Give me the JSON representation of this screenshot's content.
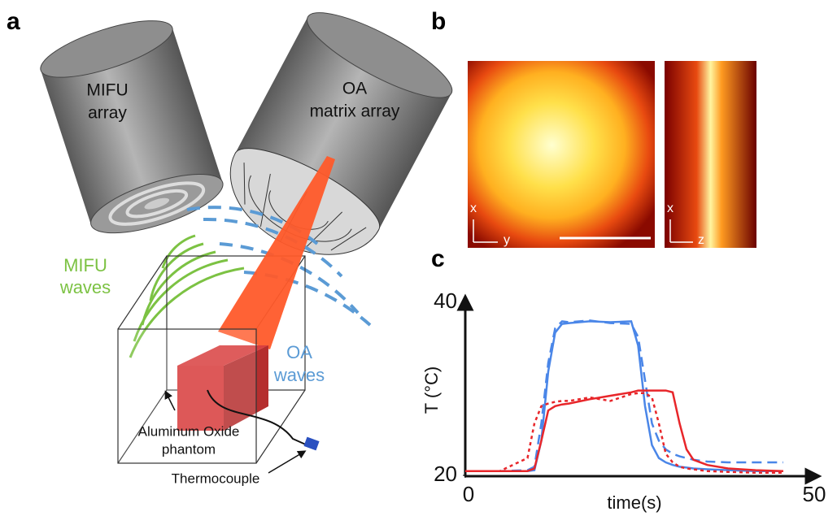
{
  "panels": {
    "a": "a",
    "b": "b",
    "c": "c"
  },
  "diagram": {
    "mifu_array": [
      "MIFU",
      "array"
    ],
    "oa_array": [
      "OA",
      "matrix array"
    ],
    "mifu_waves": [
      "MIFU",
      "waves"
    ],
    "oa_waves": [
      "OA",
      "waves"
    ],
    "phantom": [
      "Aluminum Oxide",
      "phantom"
    ],
    "thermocouple": "Thermocouple"
  },
  "images": {
    "left_axes": [
      "x",
      "y"
    ],
    "right_axes": [
      "x",
      "z"
    ]
  },
  "chart_data": {
    "type": "line",
    "xlabel": "time(s)",
    "ylabel": "T (°C)",
    "x": [
      0,
      5,
      9,
      10,
      11,
      12,
      13,
      14,
      15,
      18,
      21,
      24,
      25,
      26,
      27,
      28,
      29,
      30,
      31,
      32,
      33,
      35,
      38,
      42,
      46
    ],
    "series": [
      {
        "color": "#4a86e8",
        "dash": "solid",
        "values": [
          20.5,
          20.5,
          20.5,
          20.6,
          24,
          32,
          36.5,
          37.5,
          37.6,
          37.8,
          37.7,
          37.8,
          35,
          28,
          23.5,
          22,
          21.5,
          21.2,
          21,
          20.9,
          20.8,
          20.7,
          20.6,
          20.5,
          20.5
        ]
      },
      {
        "color": "#4a86e8",
        "dash": "dashed",
        "values": [
          20.5,
          20.5,
          20.6,
          21,
          26,
          33,
          37,
          37.8,
          37.7,
          37.9,
          37.6,
          37.5,
          36,
          31,
          26,
          24,
          23,
          22.5,
          22.2,
          22,
          21.8,
          21.6,
          21.5,
          21.5,
          21.5
        ]
      },
      {
        "color": "#e8262a",
        "dash": "solid",
        "values": [
          20.5,
          20.5,
          20.5,
          20.8,
          24,
          27.5,
          28,
          28.2,
          28.3,
          28.8,
          29.2,
          29.6,
          29.8,
          29.8,
          29.8,
          29.8,
          29.8,
          29.6,
          26,
          23,
          21.8,
          21.2,
          20.8,
          20.6,
          20.5
        ]
      },
      {
        "color": "#e8262a",
        "dash": "dotted",
        "values": [
          20.5,
          20.5,
          22,
          26,
          28,
          28.3,
          28.5,
          28.6,
          28.6,
          29,
          28.6,
          29.4,
          29.5,
          29.5,
          29,
          26,
          22.5,
          21.5,
          21,
          20.8,
          20.7,
          20.5,
          20.4,
          20.3,
          20.3
        ]
      }
    ],
    "xlim": [
      0,
      50
    ],
    "xticks": [
      0,
      50
    ],
    "ylim": [
      20,
      40
    ],
    "yticks": [
      20,
      40
    ]
  }
}
